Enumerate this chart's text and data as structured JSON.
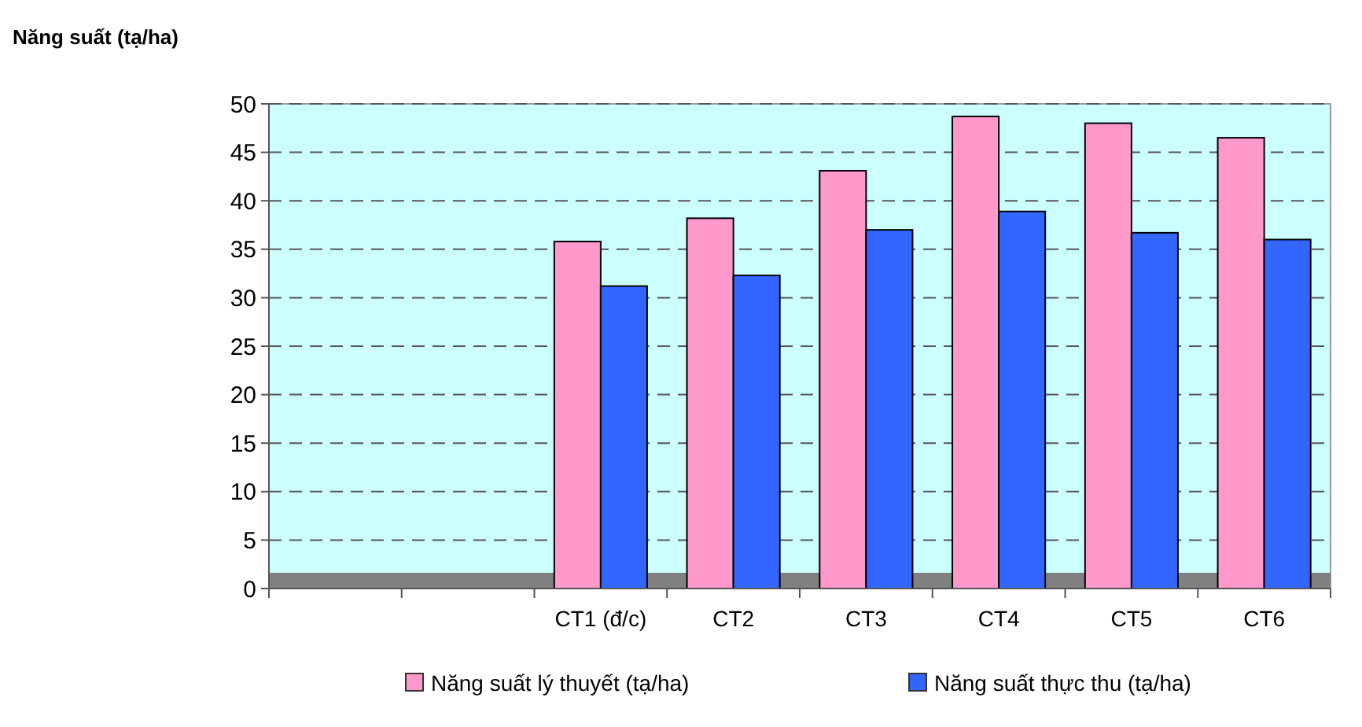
{
  "chart_data": {
    "type": "bar",
    "ylabel": "Năng suất (tạ/ha)",
    "categories": [
      null,
      null,
      "CT1 (đ/c)",
      "CT2",
      "CT3",
      "CT4",
      "CT5",
      "CT6"
    ],
    "series": [
      {
        "name": "Năng suất lý thuyết (tạ/ha)",
        "color": "#ff99cc",
        "values": [
          null,
          null,
          35.8,
          38.2,
          43.1,
          48.7,
          48.0,
          46.5
        ]
      },
      {
        "name": "Năng suất thực thu (tạ/ha)",
        "color": "#3366ff",
        "values": [
          null,
          null,
          31.2,
          32.3,
          37.0,
          38.9,
          36.7,
          36.0
        ]
      }
    ],
    "ylim": [
      0,
      50
    ],
    "yticks": [
      0,
      5,
      10,
      15,
      20,
      25,
      30,
      35,
      40,
      45,
      50
    ],
    "grid": "y",
    "legend": "bottom"
  }
}
